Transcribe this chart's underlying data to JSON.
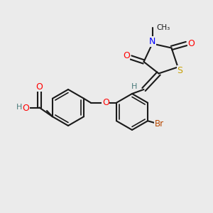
{
  "bg_color": "#ebebeb",
  "bond_color": "#1a1a1a",
  "bond_lw": 1.5,
  "font_size": 8,
  "atom_colors": {
    "O": "#ff0000",
    "N": "#0000ff",
    "S": "#c8a000",
    "Br": "#b84800",
    "H": "#4a7a7a",
    "C": "#1a1a1a"
  }
}
